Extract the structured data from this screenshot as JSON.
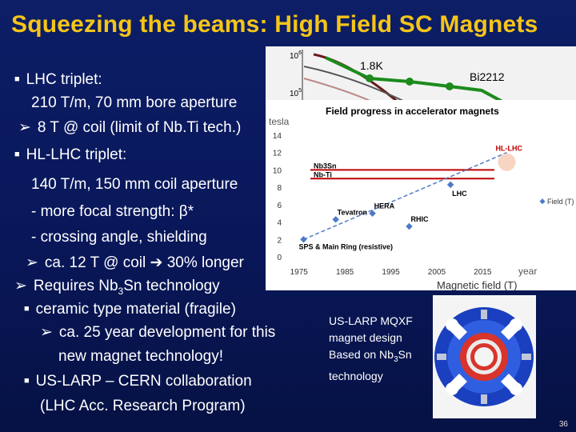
{
  "slide": {
    "title": "Squeezing the beams: High Field SC Magnets",
    "page_number": "36"
  },
  "bullets": {
    "lhc_triplet": "LHC triplet:",
    "lhc_spec": "210 T/m, 70 mm bore aperture",
    "lhc_limit": "8 T @ coil (limit of Nb.Ti tech.)",
    "hl_lhc_triplet": "HL-LHC triplet:",
    "hl_spec": "140 T/m, 150 mm coil aperture",
    "hl_focal": "- more focal strength: β*",
    "hl_crossing": "- crossing angle, shielding",
    "hl_coil": "ca. 12 T @ coil",
    "hl_longer": "30% longer",
    "requires_prefix": "Requires Nb",
    "requires_sub": "3",
    "requires_suffix": "Sn technology",
    "ceramic": "ceramic type material (fragile)",
    "dev_line1": "ca. 25 year development for this",
    "dev_line2": "new magnet technology!",
    "collab": "US-LARP – CERN collaboration",
    "collab2": "(LHC Acc. Research Program)"
  },
  "caption": {
    "line1": "US-LARP MQXF",
    "line2": "magnet design",
    "line3_prefix": "Based on Nb",
    "line3_sub": "3",
    "line3_suffix": "Sn",
    "line4": "technology"
  },
  "top_figure": {
    "label_18k": "1.8K",
    "label_bi": "Bi2212",
    "tick_1e6": "10",
    "tick_1e6_exp": "6",
    "tick_1e5": "10",
    "tick_1e5_exp": "5",
    "bottom_label": "Magnetic field (T)"
  },
  "chart_data": {
    "type": "scatter",
    "title": "Field progress in accelerator magnets",
    "ylabel": "tesla",
    "xlabel": "year",
    "x_ticks": [
      "1975",
      "1985",
      "1995",
      "2005",
      "2015"
    ],
    "y_ticks": [
      "0",
      "2",
      "4",
      "6",
      "8",
      "10",
      "12",
      "14"
    ],
    "xlim": [
      1974,
      2020
    ],
    "ylim": [
      0,
      14
    ],
    "legend": "Field (T)",
    "colors": {
      "points": "#4f7ac7",
      "trend": "#4f7ac7",
      "limit_line": "#c00000",
      "hl_lhc": "#c00000"
    },
    "points": [
      {
        "label": "SPS & Main Ring (resistive)",
        "x": 1976,
        "y": 2
      },
      {
        "label": "Tevatron",
        "x": 1983,
        "y": 4.3
      },
      {
        "label": "HERA",
        "x": 1991,
        "y": 5
      },
      {
        "label": "RHIC",
        "x": 1999,
        "y": 3.5
      },
      {
        "label": "LHC",
        "x": 2008,
        "y": 8.3
      },
      {
        "label": "HL-LHC",
        "x": 2022,
        "y": 12
      }
    ],
    "limit_lines": [
      {
        "label": "Nb3Sn",
        "y": 10
      },
      {
        "label": "Nb-Ti",
        "y": 9
      }
    ]
  }
}
